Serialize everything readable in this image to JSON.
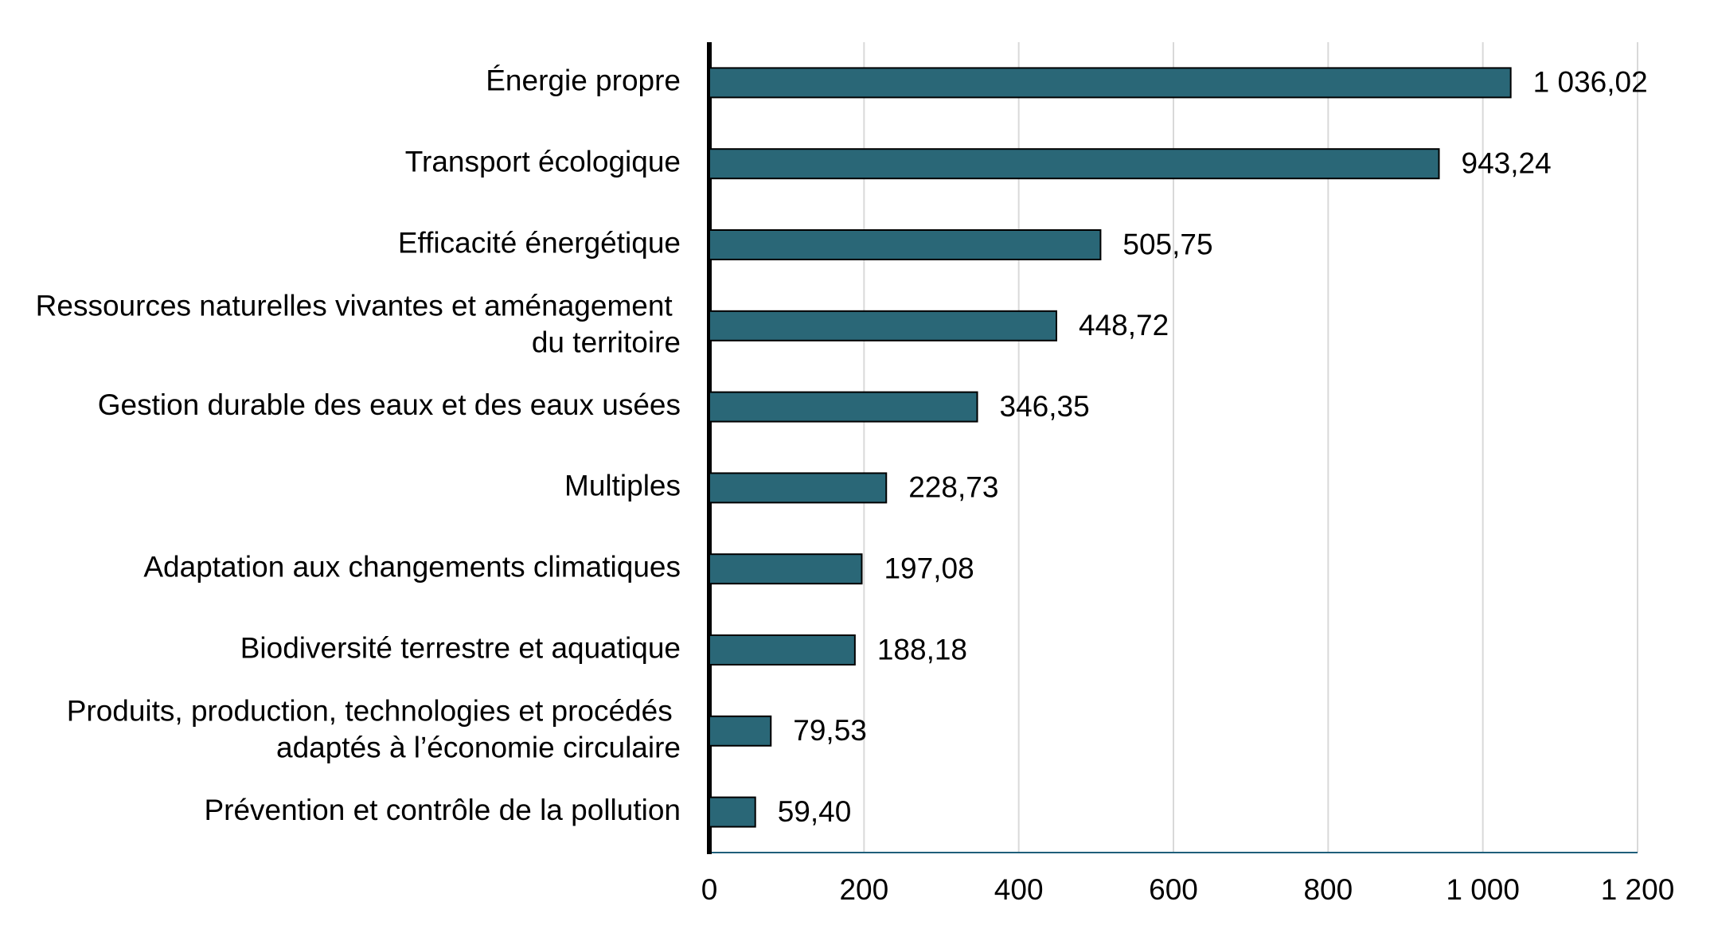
{
  "chart_data": {
    "type": "barh",
    "categories": [
      "Énergie propre",
      "Transport écologique",
      "Efficacité énergétique",
      "Ressources naturelles vivantes et aménagement du territoire",
      "Gestion durable des eaux et des eaux usées",
      "Multiples",
      "Adaptation aux changements climatiques",
      "Biodiversité terrestre et aquatique",
      "Produits, production, technologies et procédés adaptés à l’économie circulaire",
      "Prévention et contrôle de la pollution"
    ],
    "values": [
      1036.02,
      943.24,
      505.75,
      448.72,
      346.35,
      228.73,
      197.08,
      188.18,
      79.53,
      59.4
    ],
    "value_labels": [
      "1 036,02",
      "943,24",
      "505,75",
      "448,72",
      "346,35",
      "228,73",
      "197,08",
      "188,18",
      "79,53",
      "59,40"
    ],
    "color": "#2a6777",
    "xlim": [
      0,
      1200
    ],
    "xticks": [
      0,
      200,
      400,
      600,
      800,
      {
        "value": 1000,
        "label": "1 000"
      },
      {
        "value": 1200,
        "label": "1 200"
      }
    ],
    "grid": true
  }
}
